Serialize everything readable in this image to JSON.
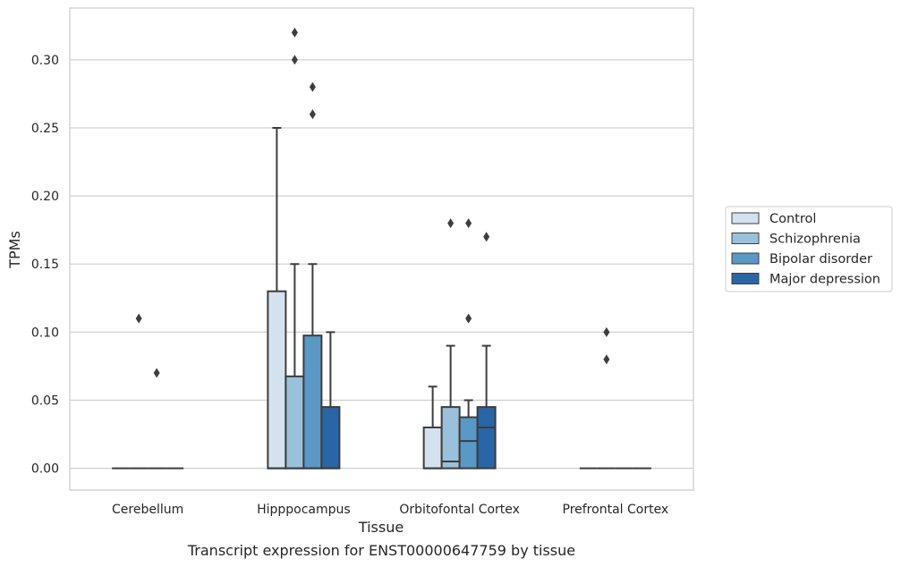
{
  "caption": "Transcript expression for ENST00000647759 by tissue",
  "chart_data": {
    "type": "box",
    "title": "",
    "xlabel": "Tissue",
    "ylabel": "TPMs",
    "ylim": [
      -0.016,
      0.338
    ],
    "yticks": [
      0.0,
      0.05,
      0.1,
      0.15,
      0.2,
      0.25,
      0.3
    ],
    "ytick_labels": [
      "0.00",
      "0.05",
      "0.10",
      "0.15",
      "0.20",
      "0.25",
      "0.30"
    ],
    "grid": "horizontal",
    "legend_position": "right",
    "categories": [
      "Cerebellum",
      "Hipppocampus",
      "Orbitofontal Cortex",
      "Prefrontal Cortex"
    ],
    "series": [
      {
        "name": "Control",
        "color": "#d4e2f0",
        "boxes": [
          {
            "q1": 0,
            "median": 0,
            "q3": 0,
            "whisker_low": 0,
            "whisker_high": 0,
            "outliers": []
          },
          {
            "q1": 0,
            "median": 0,
            "q3": 0.13,
            "whisker_low": 0,
            "whisker_high": 0.25,
            "outliers": []
          },
          {
            "q1": 0,
            "median": 0,
            "q3": 0.03,
            "whisker_low": 0,
            "whisker_high": 0.06,
            "outliers": []
          },
          {
            "q1": 0,
            "median": 0,
            "q3": 0,
            "whisker_low": 0,
            "whisker_high": 0,
            "outliers": []
          }
        ]
      },
      {
        "name": "Schizophrenia",
        "color": "#9ac1db",
        "boxes": [
          {
            "q1": 0,
            "median": 0,
            "q3": 0,
            "whisker_low": 0,
            "whisker_high": 0,
            "outliers": [
              0.11
            ]
          },
          {
            "q1": 0,
            "median": 0,
            "q3": 0.0675,
            "whisker_low": 0,
            "whisker_high": 0.15,
            "outliers": [
              0.32,
              0.3
            ]
          },
          {
            "q1": 0,
            "median": 0.005,
            "q3": 0.045,
            "whisker_low": 0,
            "whisker_high": 0.09,
            "outliers": [
              0.18
            ]
          },
          {
            "q1": 0,
            "median": 0,
            "q3": 0,
            "whisker_low": 0,
            "whisker_high": 0,
            "outliers": [
              0.1,
              0.08
            ]
          }
        ]
      },
      {
        "name": "Bipolar disorder",
        "color": "#5a98c6",
        "boxes": [
          {
            "q1": 0,
            "median": 0,
            "q3": 0,
            "whisker_low": 0,
            "whisker_high": 0,
            "outliers": [
              0.07
            ]
          },
          {
            "q1": 0,
            "median": 0,
            "q3": 0.0975,
            "whisker_low": 0,
            "whisker_high": 0.15,
            "outliers": [
              0.28,
              0.26
            ]
          },
          {
            "q1": 0,
            "median": 0.02,
            "q3": 0.0375,
            "whisker_low": 0,
            "whisker_high": 0.05,
            "outliers": [
              0.18,
              0.11
            ]
          },
          {
            "q1": 0,
            "median": 0,
            "q3": 0,
            "whisker_low": 0,
            "whisker_high": 0,
            "outliers": []
          }
        ]
      },
      {
        "name": "Major depression",
        "color": "#2966a5",
        "boxes": [
          {
            "q1": 0,
            "median": 0,
            "q3": 0,
            "whisker_low": 0,
            "whisker_high": 0,
            "outliers": []
          },
          {
            "q1": 0,
            "median": 0,
            "q3": 0.045,
            "whisker_low": 0,
            "whisker_high": 0.1,
            "outliers": []
          },
          {
            "q1": 0,
            "median": 0.03,
            "q3": 0.045,
            "whisker_low": 0,
            "whisker_high": 0.09,
            "outliers": [
              0.17
            ]
          },
          {
            "q1": 0,
            "median": 0,
            "q3": 0,
            "whisker_low": 0,
            "whisker_high": 0,
            "outliers": []
          }
        ]
      }
    ]
  }
}
